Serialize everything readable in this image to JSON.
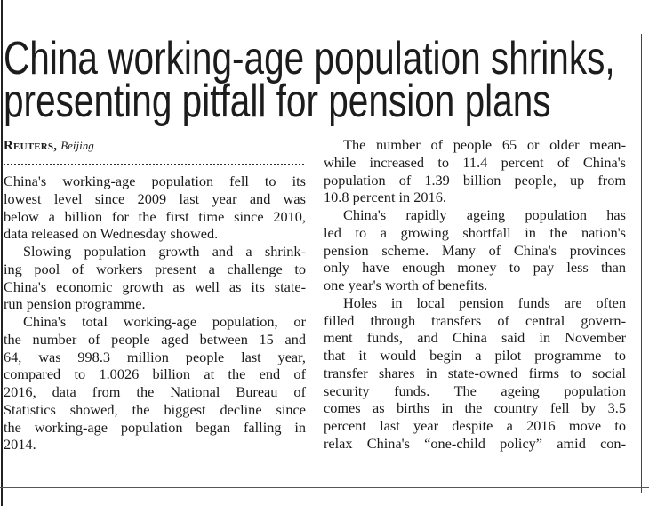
{
  "article": {
    "headline": [
      "China working-age population shrinks,",
      "presenting pitfall for pension plans"
    ],
    "byline": {
      "agency": "Reuters,",
      "place": "Beijing"
    },
    "columns": [
      {
        "paragraphs": [
          {
            "lines": [
              "China's working-age population fell to its",
              "lowest level since 2009 last year and was",
              "below a billion for the first time since 2010,",
              "data released on Wednesday showed."
            ]
          },
          {
            "lines": [
              "Slowing population growth and a shrink-",
              "ing pool of workers present a challenge to",
              "China's economic growth as well as its state-",
              "run pension programme."
            ]
          },
          {
            "lines": [
              "China's total working-age population, or",
              "the number of people aged between 15 and",
              "64, was 998.3 million people last year,",
              "compared to 1.0026 billion at the end of",
              "2016, data from the National Bureau of",
              "Statistics showed, the biggest decline since",
              "the working-age population began falling in",
              "2014."
            ]
          }
        ]
      },
      {
        "paragraphs": [
          {
            "lines": [
              "The number of people 65 or older mean-",
              "while increased to 11.4 percent of China's",
              "population of 1.39 billion people, up from",
              "10.8 percent in 2016."
            ]
          },
          {
            "lines": [
              "China's rapidly ageing population has",
              "led to a growing shortfall in the nation's",
              "pension scheme. Many of China's provinces",
              "only have enough money to pay less than",
              "one year's worth of benefits."
            ]
          },
          {
            "lines": [
              "Holes in local pension funds are often",
              "filled through transfers of central govern-",
              "ment funds, and China said in November",
              "that it would begin a pilot programme to",
              "transfer shares in state-owned firms to social",
              "security funds. The ageing population",
              "comes as births in the country fell by 3.5",
              "percent last year despite a 2016 move to",
              "relax China's “one-child policy” amid con-"
            ]
          }
        ]
      }
    ]
  }
}
